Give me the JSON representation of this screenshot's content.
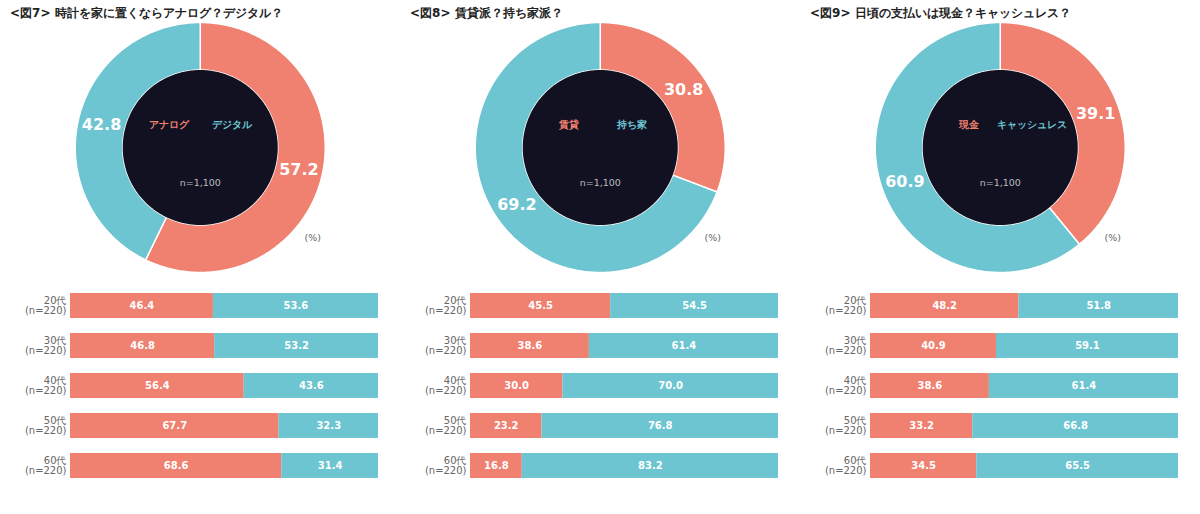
{
  "chart_data": [
    {
      "type": "pie",
      "title": "<図7> 時計を家に置くならアナログ？デジタル？",
      "categories": [
        "アナログ",
        "デジタル"
      ],
      "values": [
        57.2,
        42.8
      ],
      "value_labels": [
        "57.2",
        "42.8"
      ],
      "colors": [
        "#F08070",
        "#6CC5D0"
      ],
      "data_labels": true,
      "annotations": [
        "n=1,100",
        "(%)"
      ]
    },
    {
      "type": "bar",
      "orientation": "horizontal",
      "stacked": true,
      "categories": [
        "20代\n(n=220)",
        "30代\n(n=220)",
        "40代\n(n=220)",
        "50代\n(n=220)",
        "60代\n(n=220)"
      ],
      "series": [
        {
          "name": "アナログ",
          "color": "#F08070",
          "values": [
            46.4,
            46.8,
            56.4,
            67.7,
            68.6
          ],
          "value_labels": [
            "46.4",
            "46.8",
            "56.4",
            "67.7",
            "68.6"
          ]
        },
        {
          "name": "デジタル",
          "color": "#6CC5D0",
          "values": [
            53.6,
            53.2,
            43.6,
            32.3,
            31.4
          ],
          "value_labels": [
            "53.6",
            "53.2",
            "43.6",
            "32.3",
            "31.4"
          ]
        }
      ],
      "xlim": [
        0,
        100
      ],
      "tick_labels": "y",
      "data_labels": true
    },
    {
      "type": "pie",
      "title": "<図8> 賃貸派？持ち家派？",
      "categories": [
        "賃貸",
        "持ち家"
      ],
      "values": [
        30.8,
        69.2
      ],
      "value_labels": [
        "30.8",
        "69.2"
      ],
      "colors": [
        "#F08070",
        "#6CC5D0"
      ],
      "data_labels": true,
      "annotations": [
        "n=1,100",
        "(%)"
      ]
    },
    {
      "type": "bar",
      "orientation": "horizontal",
      "stacked": true,
      "categories": [
        "20代\n(n=220)",
        "30代\n(n=220)",
        "40代\n(n=220)",
        "50代\n(n=220)",
        "60代\n(n=220)"
      ],
      "series": [
        {
          "name": "賃貸",
          "color": "#F08070",
          "values": [
            45.5,
            38.6,
            30.0,
            23.2,
            16.8
          ],
          "value_labels": [
            "45.5",
            "38.6",
            "30.0",
            "23.2",
            "16.8"
          ]
        },
        {
          "name": "持ち家",
          "color": "#6CC5D0",
          "values": [
            54.5,
            61.4,
            70.0,
            76.8,
            83.2
          ],
          "value_labels": [
            "54.5",
            "61.4",
            "70.0",
            "76.8",
            "83.2"
          ]
        }
      ],
      "xlim": [
        0,
        100
      ],
      "tick_labels": "y",
      "data_labels": true
    },
    {
      "type": "pie",
      "title": "<図9> 日頃の支払いは現金？キャッシュレス？",
      "categories": [
        "現金",
        "キャッシュレス"
      ],
      "values": [
        39.1,
        60.9
      ],
      "value_labels": [
        "39.1",
        "60.9"
      ],
      "colors": [
        "#F08070",
        "#6CC5D0"
      ],
      "data_labels": true,
      "annotations": [
        "n=1,100",
        "(%)"
      ]
    },
    {
      "type": "bar",
      "orientation": "horizontal",
      "stacked": true,
      "categories": [
        "20代\n(n=220)",
        "30代\n(n=220)",
        "40代\n(n=220)",
        "50代\n(n=220)",
        "60代\n(n=220)"
      ],
      "series": [
        {
          "name": "現金",
          "color": "#F08070",
          "values": [
            48.2,
            40.9,
            38.6,
            33.2,
            34.5
          ],
          "value_labels": [
            "48.2",
            "40.9",
            "38.6",
            "33.2",
            "34.5"
          ]
        },
        {
          "name": "キャッシュレス",
          "color": "#6CC5D0",
          "values": [
            51.8,
            59.1,
            61.4,
            66.8,
            65.5
          ],
          "value_labels": [
            "51.8",
            "59.1",
            "61.4",
            "66.8",
            "65.5"
          ]
        }
      ],
      "xlim": [
        0,
        100
      ],
      "tick_labels": "y",
      "data_labels": true
    }
  ]
}
